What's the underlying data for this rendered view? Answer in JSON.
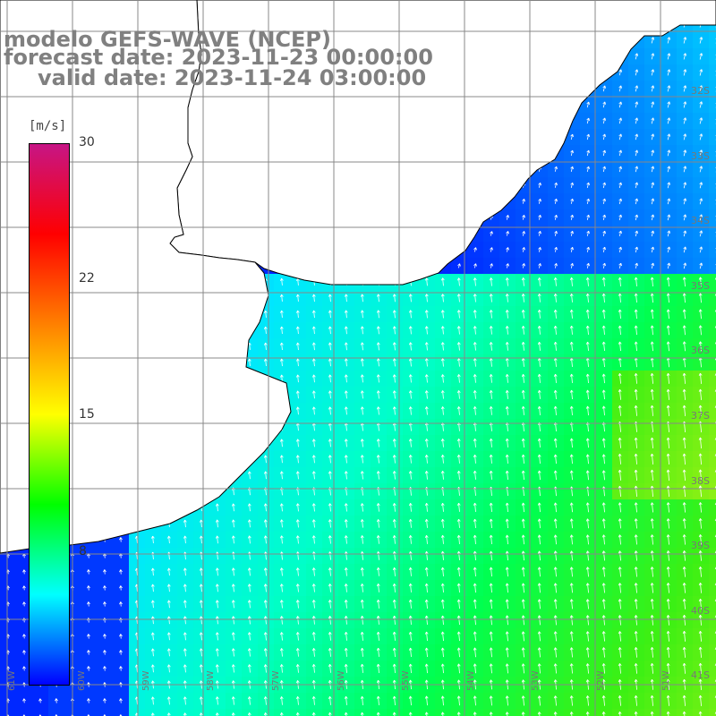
{
  "title": {
    "line1": "modelo GEFS-WAVE (NCEP)",
    "line2": "forecast date: 2023-11-23 00:00:00",
    "line3": "valid date: 2023-11-24 03:00:00"
  },
  "colorbar": {
    "unit": "[m/s]",
    "ticks": [
      "30",
      "22",
      "15",
      "8"
    ],
    "stops": [
      "#c71585",
      "#ff0000",
      "#ff8000",
      "#ffff00",
      "#00ff00",
      "#00ffff",
      "#0000ff"
    ]
  },
  "map": {
    "variable": "wind speed and direction",
    "land_color": "#ffffff",
    "grid_color": "#888888",
    "lat_labels": [
      "32S",
      "33S",
      "34S",
      "35S",
      "36S",
      "37S",
      "38S",
      "39S",
      "40S",
      "41S"
    ],
    "lon_labels": [
      "61W",
      "60W",
      "59W",
      "58W",
      "57W",
      "56W",
      "55W",
      "54W",
      "53W",
      "52W",
      "51W"
    ]
  }
}
